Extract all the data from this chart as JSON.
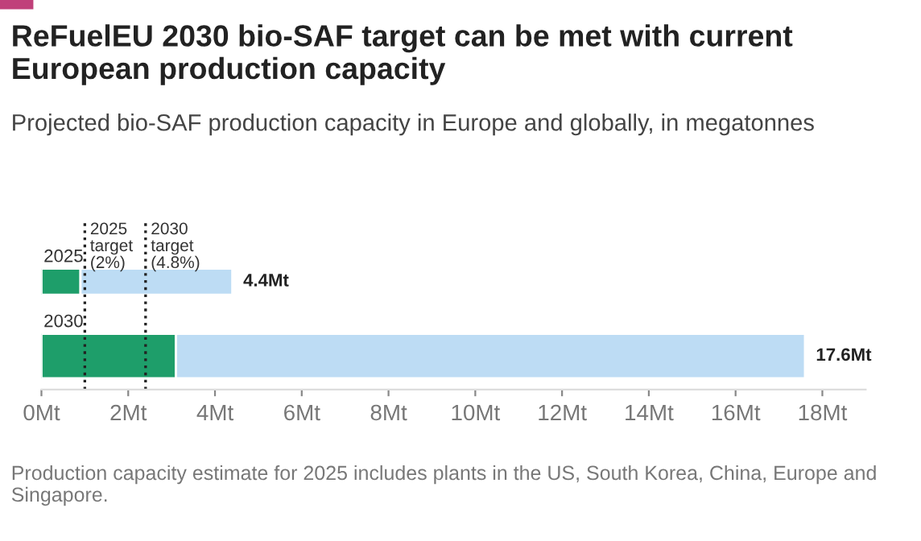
{
  "chart_data": {
    "type": "bar",
    "orientation": "horizontal",
    "stacked": true,
    "title": "ReFuelEU 2030 bio-SAF target can be met with current European production capacity",
    "subtitle": "Projected bio-SAF production capacity in Europe and globally, in megatonnes",
    "categories": [
      "2025",
      "2030"
    ],
    "series": [
      {
        "color": "#1e9e6a",
        "values": [
          0.9,
          3.1
        ]
      },
      {
        "color": "#bddcf4",
        "values": [
          3.5,
          14.5
        ]
      }
    ],
    "totals": [
      "4.4Mt",
      "17.6Mt"
    ],
    "xlim": [
      0,
      19
    ],
    "xticks": [
      {
        "value": 0,
        "label": "0Mt"
      },
      {
        "value": 2,
        "label": "2Mt"
      },
      {
        "value": 4,
        "label": "4Mt"
      },
      {
        "value": 6,
        "label": "6Mt"
      },
      {
        "value": 8,
        "label": "8Mt"
      },
      {
        "value": 10,
        "label": "10Mt"
      },
      {
        "value": 12,
        "label": "12Mt"
      },
      {
        "value": 14,
        "label": "14Mt"
      },
      {
        "value": 16,
        "label": "16Mt"
      },
      {
        "value": 18,
        "label": "18Mt"
      }
    ],
    "ref_lines": [
      {
        "axis": "x",
        "value": 1.0,
        "label": "2025\ntarget\n(2%)",
        "line_style": "dotted",
        "color": "#222222"
      },
      {
        "axis": "x",
        "value": 2.4,
        "label": "2030\ntarget\n(4.8%)",
        "line_style": "dotted",
        "color": "#222222"
      }
    ],
    "grid": false,
    "legend": false,
    "annotations": [
      "Production capacity estimate for 2025 includes plants in the US, South Korea, China, Europe and Singapore."
    ]
  }
}
